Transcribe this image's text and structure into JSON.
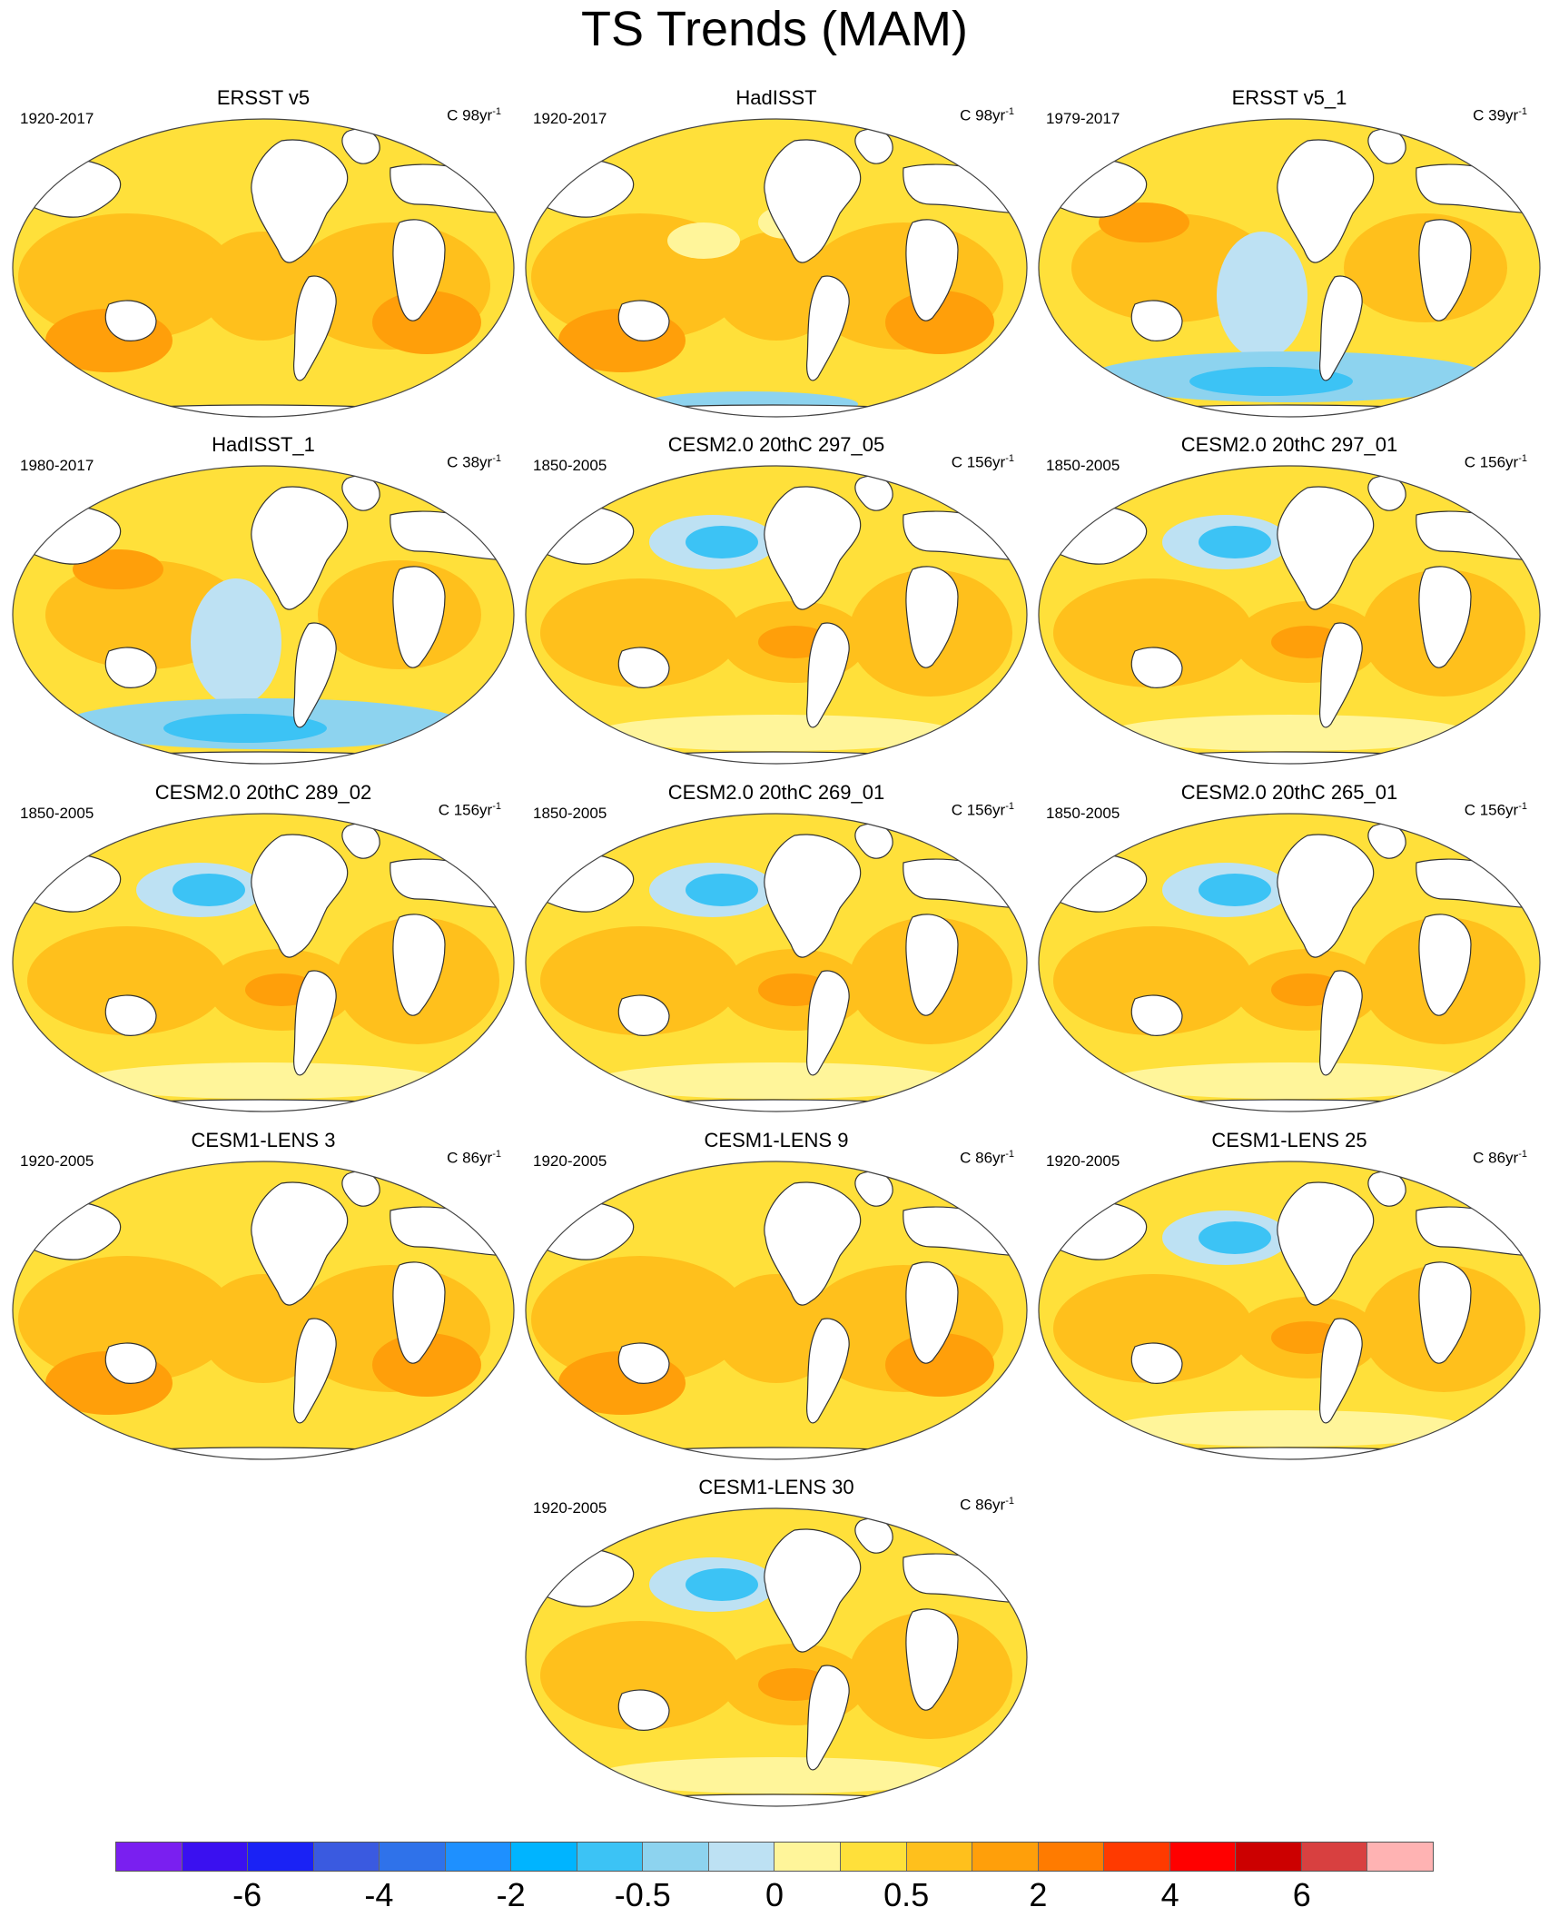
{
  "title": "TS Trends (MAM)",
  "panels": [
    {
      "title": "ERSST v5",
      "period": "1920-2017",
      "units_prefix": "C 98yr",
      "units_sup": "-1",
      "pattern": "warm"
    },
    {
      "title": "HadISST",
      "period": "1920-2017",
      "units_prefix": "C 98yr",
      "units_sup": "-1",
      "pattern": "warm-noisy"
    },
    {
      "title": "ERSST v5_1",
      "period": "1979-2017",
      "units_prefix": "C 39yr",
      "units_sup": "-1",
      "pattern": "cool-south"
    },
    {
      "title": "HadISST_1",
      "period": "1980-2017",
      "units_prefix": "C 38yr",
      "units_sup": "-1",
      "pattern": "cool-south"
    },
    {
      "title": "CESM2.0 20thC 297_05",
      "period": "1850-2005",
      "units_prefix": "C 156yr",
      "units_sup": "-1",
      "pattern": "cool-npac"
    },
    {
      "title": "CESM2.0 20thC 297_01",
      "period": "1850-2005",
      "units_prefix": "C 156yr",
      "units_sup": "-1",
      "pattern": "cool-npac"
    },
    {
      "title": "CESM2.0 20thC 289_02",
      "period": "1850-2005",
      "units_prefix": "C 156yr",
      "units_sup": "-1",
      "pattern": "cool-npac"
    },
    {
      "title": "CESM2.0 20thC 269_01",
      "period": "1850-2005",
      "units_prefix": "C 156yr",
      "units_sup": "-1",
      "pattern": "cool-npac"
    },
    {
      "title": "CESM2.0 20thC 265_01",
      "period": "1850-2005",
      "units_prefix": "C 156yr",
      "units_sup": "-1",
      "pattern": "cool-npac"
    },
    {
      "title": "CESM1-LENS 3",
      "period": "1920-2005",
      "units_prefix": "C 86yr",
      "units_sup": "-1",
      "pattern": "warm"
    },
    {
      "title": "CESM1-LENS 9",
      "period": "1920-2005",
      "units_prefix": "C 86yr",
      "units_sup": "-1",
      "pattern": "warm"
    },
    {
      "title": "CESM1-LENS 25",
      "period": "1920-2005",
      "units_prefix": "C 86yr",
      "units_sup": "-1",
      "pattern": "cool-npac"
    },
    {
      "title": "CESM1-LENS 30",
      "period": "1920-2005",
      "units_prefix": "C 86yr",
      "units_sup": "-1",
      "pattern": "cool-npac"
    }
  ],
  "colorbar": {
    "colors": [
      "#7a1ff0",
      "#3a10f0",
      "#1a22f5",
      "#3a5ae0",
      "#2f72ea",
      "#1e90ff",
      "#00b4ff",
      "#3cc3f5",
      "#8dd3ef",
      "#bde1f3",
      "#fff59a",
      "#ffe03a",
      "#ffc01c",
      "#ff9f0a",
      "#ff7b00",
      "#ff3a00",
      "#ff0000",
      "#cc0000",
      "#d84040",
      "#ffb3b3"
    ],
    "labels": [
      "-6",
      "-4",
      "-2",
      "-0.5",
      "0",
      "0.5",
      "2",
      "4",
      "6"
    ],
    "label_boundary_index": [
      2,
      4,
      6,
      8,
      10,
      12,
      14,
      16,
      18
    ]
  }
}
